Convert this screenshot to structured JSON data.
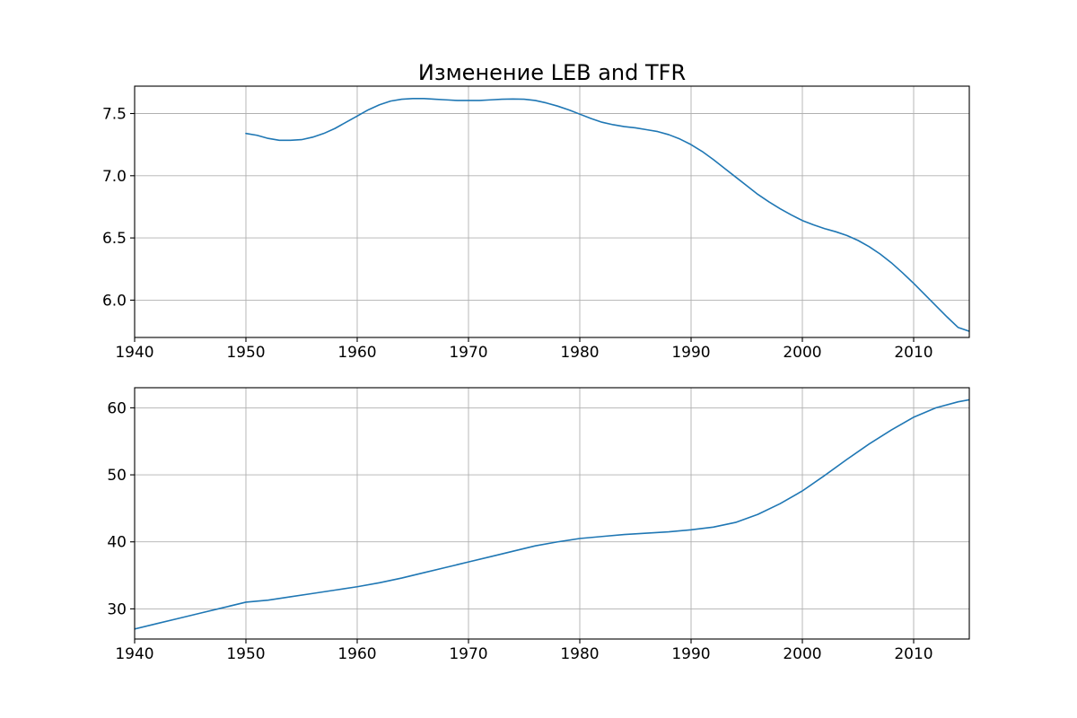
{
  "figure": {
    "title": "Изменение LEB and TFR",
    "line_color": "#1f77b4"
  },
  "chart_data": [
    {
      "type": "line",
      "title": "Изменение LEB and TFR",
      "xlabel": "",
      "ylabel": "",
      "xlim": [
        1940,
        2015
      ],
      "ylim": [
        5.7,
        7.72
      ],
      "grid": true,
      "x_ticks": [
        1940,
        1950,
        1960,
        1970,
        1980,
        1990,
        2000,
        2010
      ],
      "y_ticks": [
        6.0,
        6.5,
        7.0,
        7.5
      ],
      "x_tick_labels": [
        "1940",
        "1950",
        "1960",
        "1970",
        "1980",
        "1990",
        "2000",
        "2010"
      ],
      "y_tick_labels": [
        "6.0",
        "6.5",
        "7.0",
        "7.5"
      ],
      "series": [
        {
          "x": [
            1950,
            1951,
            1952,
            1953,
            1954,
            1955,
            1956,
            1957,
            1958,
            1959,
            1960,
            1961,
            1962,
            1963,
            1964,
            1965,
            1966,
            1967,
            1968,
            1969,
            1970,
            1971,
            1972,
            1973,
            1974,
            1975,
            1976,
            1977,
            1978,
            1979,
            1980,
            1981,
            1982,
            1983,
            1984,
            1985,
            1986,
            1987,
            1988,
            1989,
            1990,
            1991,
            1992,
            1993,
            1994,
            1995,
            1996,
            1997,
            1998,
            1999,
            2000,
            2001,
            2002,
            2003,
            2004,
            2005,
            2006,
            2007,
            2008,
            2009,
            2010,
            2011,
            2012,
            2013,
            2014,
            2015
          ],
          "values": [
            7.34,
            7.325,
            7.3,
            7.285,
            7.285,
            7.29,
            7.31,
            7.34,
            7.38,
            7.43,
            7.48,
            7.53,
            7.57,
            7.6,
            7.615,
            7.62,
            7.62,
            7.615,
            7.61,
            7.605,
            7.605,
            7.605,
            7.61,
            7.615,
            7.617,
            7.615,
            7.605,
            7.585,
            7.56,
            7.53,
            7.495,
            7.46,
            7.43,
            7.41,
            7.395,
            7.385,
            7.37,
            7.355,
            7.33,
            7.295,
            7.25,
            7.195,
            7.13,
            7.06,
            6.99,
            6.92,
            6.85,
            6.79,
            6.735,
            6.685,
            6.64,
            6.605,
            6.575,
            6.55,
            6.52,
            6.48,
            6.43,
            6.37,
            6.3,
            6.22,
            6.135,
            6.045,
            5.955,
            5.865,
            5.78,
            5.75
          ]
        }
      ]
    },
    {
      "type": "line",
      "xlabel": "",
      "ylabel": "",
      "xlim": [
        1940,
        2015
      ],
      "ylim": [
        25.5,
        63.0
      ],
      "grid": true,
      "x_ticks": [
        1940,
        1950,
        1960,
        1970,
        1980,
        1990,
        2000,
        2010
      ],
      "y_ticks": [
        30,
        40,
        50,
        60
      ],
      "x_tick_labels": [
        "1940",
        "1950",
        "1960",
        "1970",
        "1980",
        "1990",
        "2000",
        "2010"
      ],
      "y_tick_labels": [
        "30",
        "40",
        "50",
        "60"
      ],
      "series": [
        {
          "x": [
            1940,
            1942,
            1944,
            1946,
            1948,
            1950,
            1952,
            1954,
            1956,
            1958,
            1960,
            1962,
            1964,
            1966,
            1968,
            1970,
            1972,
            1974,
            1976,
            1978,
            1980,
            1982,
            1984,
            1986,
            1988,
            1990,
            1992,
            1994,
            1996,
            1998,
            2000,
            2002,
            2004,
            2006,
            2008,
            2010,
            2012,
            2014,
            2015
          ],
          "values": [
            27.0,
            27.8,
            28.6,
            29.4,
            30.2,
            31.0,
            31.3,
            31.8,
            32.3,
            32.8,
            33.3,
            33.9,
            34.6,
            35.4,
            36.2,
            37.0,
            37.8,
            38.6,
            39.4,
            40.0,
            40.5,
            40.8,
            41.1,
            41.3,
            41.5,
            41.8,
            42.2,
            42.9,
            44.1,
            45.7,
            47.6,
            49.9,
            52.3,
            54.6,
            56.7,
            58.6,
            60.0,
            60.9,
            61.2
          ]
        }
      ]
    }
  ]
}
